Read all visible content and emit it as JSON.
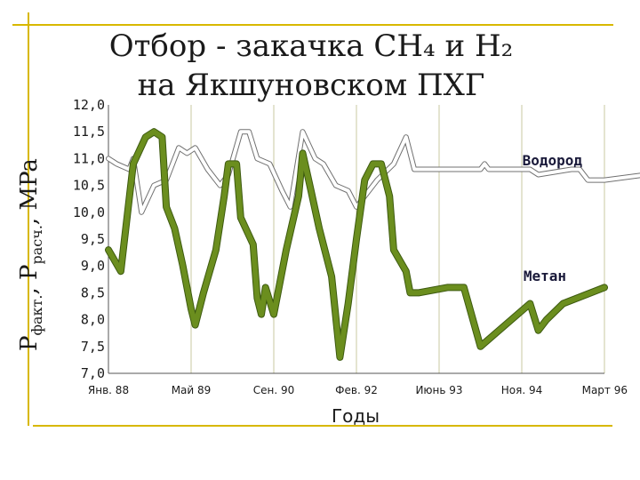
{
  "chart_data": {
    "type": "line",
    "title_line1": "Отбор - закачка CH₄ и H₂",
    "title_line2": "на Якшуновском ПХГ",
    "ylabel_main": "P",
    "ylabel_sub1": "факт.",
    "ylabel_sep": ", P",
    "ylabel_sub2": "расч.",
    "ylabel_unit": ", MPa",
    "xlabel": "Годы",
    "ylim": [
      7.0,
      12.0
    ],
    "yticks": [
      "7,0",
      "7,5",
      "8,0",
      "8,5",
      "9,0",
      "9,5",
      "10,0",
      "10,5",
      "11,0",
      "11,5",
      "12,0"
    ],
    "xticks": [
      "Янв. 88",
      "Май 89",
      "Сен. 90",
      "Фев. 92",
      "Июнь 93",
      "Ноя. 94",
      "Март 96"
    ],
    "grid": "vertical",
    "series": [
      {
        "name": "Водород",
        "color": "#ffffff",
        "outline": "#707070",
        "points": [
          [
            0.0,
            11.0
          ],
          [
            0.1,
            10.9
          ],
          [
            0.25,
            10.8
          ],
          [
            0.3,
            11.0
          ],
          [
            0.4,
            10.0
          ],
          [
            0.55,
            10.5
          ],
          [
            0.7,
            10.6
          ],
          [
            0.85,
            11.2
          ],
          [
            0.95,
            11.1
          ],
          [
            1.05,
            11.2
          ],
          [
            1.2,
            10.8
          ],
          [
            1.35,
            10.5
          ],
          [
            1.45,
            10.7
          ],
          [
            1.6,
            11.5
          ],
          [
            1.7,
            11.5
          ],
          [
            1.8,
            11.0
          ],
          [
            1.95,
            10.9
          ],
          [
            2.1,
            10.4
          ],
          [
            2.2,
            10.1
          ],
          [
            2.35,
            11.5
          ],
          [
            2.5,
            11.0
          ],
          [
            2.6,
            10.9
          ],
          [
            2.75,
            10.5
          ],
          [
            2.9,
            10.4
          ],
          [
            3.0,
            10.1
          ],
          [
            3.25,
            10.6
          ],
          [
            3.45,
            10.9
          ],
          [
            3.6,
            11.4
          ],
          [
            3.7,
            10.8
          ],
          [
            4.0,
            10.8
          ],
          [
            4.4,
            10.8
          ],
          [
            4.5,
            10.8
          ],
          [
            4.55,
            10.9
          ],
          [
            4.6,
            10.8
          ],
          [
            4.9,
            10.8
          ],
          [
            5.1,
            10.8
          ],
          [
            5.2,
            10.7
          ],
          [
            5.6,
            10.8
          ],
          [
            5.7,
            10.8
          ],
          [
            5.8,
            10.6
          ],
          [
            6.0,
            10.6
          ],
          [
            6.5,
            10.7
          ]
        ]
      },
      {
        "name": "Метан",
        "color": "#6b8e1e",
        "outline": "#3d5a10",
        "points": [
          [
            0.0,
            9.3
          ],
          [
            0.15,
            8.9
          ],
          [
            0.3,
            10.9
          ],
          [
            0.45,
            11.4
          ],
          [
            0.55,
            11.5
          ],
          [
            0.65,
            11.4
          ],
          [
            0.7,
            10.1
          ],
          [
            0.8,
            9.7
          ],
          [
            0.9,
            9.0
          ],
          [
            1.0,
            8.2
          ],
          [
            1.05,
            7.9
          ],
          [
            1.15,
            8.5
          ],
          [
            1.3,
            9.3
          ],
          [
            1.4,
            10.3
          ],
          [
            1.45,
            10.9
          ],
          [
            1.55,
            10.9
          ],
          [
            1.6,
            9.9
          ],
          [
            1.75,
            9.4
          ],
          [
            1.8,
            8.4
          ],
          [
            1.85,
            8.1
          ],
          [
            1.9,
            8.6
          ],
          [
            2.0,
            8.1
          ],
          [
            2.15,
            9.3
          ],
          [
            2.3,
            10.3
          ],
          [
            2.35,
            11.1
          ],
          [
            2.45,
            10.4
          ],
          [
            2.55,
            9.7
          ],
          [
            2.7,
            8.8
          ],
          [
            2.8,
            7.3
          ],
          [
            2.9,
            8.3
          ],
          [
            3.0,
            9.5
          ],
          [
            3.1,
            10.6
          ],
          [
            3.2,
            10.9
          ],
          [
            3.3,
            10.9
          ],
          [
            3.4,
            10.3
          ],
          [
            3.45,
            9.3
          ],
          [
            3.6,
            8.9
          ],
          [
            3.65,
            8.5
          ],
          [
            3.75,
            8.5
          ],
          [
            4.1,
            8.6
          ],
          [
            4.3,
            8.6
          ],
          [
            4.5,
            7.5
          ],
          [
            4.8,
            7.9
          ],
          [
            5.1,
            8.3
          ],
          [
            5.2,
            7.8
          ],
          [
            5.3,
            8.0
          ],
          [
            5.5,
            8.3
          ],
          [
            6.0,
            8.6
          ]
        ]
      }
    ]
  }
}
